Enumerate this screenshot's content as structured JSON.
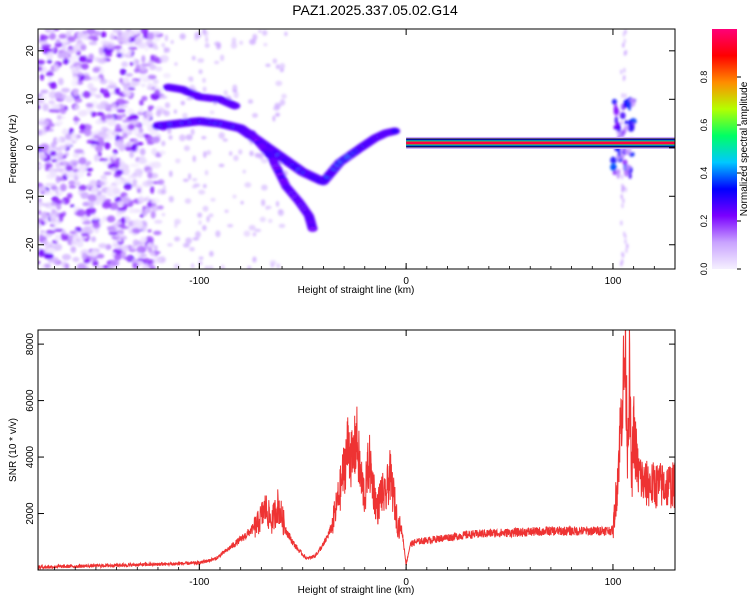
{
  "figure": {
    "title": "PAZ1.2025.337.05.02.G14"
  },
  "chart_data": [
    {
      "type": "heatmap",
      "title": "PAZ1.2025.337.05.02.G14",
      "xlabel": "Height of straight line (km)",
      "ylabel": "Frequency (Hz)",
      "xlim": [
        -178,
        130
      ],
      "ylim": [
        -25,
        24.5
      ],
      "xticks": [
        -100,
        0,
        100
      ],
      "yticks": [
        -20,
        -10,
        0,
        10,
        20
      ],
      "colorbar": {
        "label": "Normalized spectral amplitude",
        "range": [
          0,
          1
        ],
        "ticks": [
          0.0,
          0.2,
          0.4,
          0.6,
          0.8
        ],
        "colormap": [
          "#ffffff",
          "#c9a3ff",
          "#7a00ff",
          "#0000ff",
          "#00c8ff",
          "#00ff64",
          "#b4ff00",
          "#ff8c00",
          "#ff0000",
          "#ff0078"
        ]
      },
      "features": [
        {
          "name": "noise-cloud",
          "x_range": [
            -178,
            -115
          ],
          "y_range": [
            -25,
            24.5
          ]
        },
        {
          "name": "upper-branch",
          "points": [
            [
              -115,
              12.5
            ],
            [
              -108,
              12
            ],
            [
              -100,
              10.5
            ],
            [
              -90,
              10
            ],
            [
              -82,
              8.5
            ]
          ]
        },
        {
          "name": "mid-branch",
          "points": [
            [
              -120,
              4.5
            ],
            [
              -110,
              5
            ],
            [
              -100,
              5.5
            ],
            [
              -90,
              5
            ],
            [
              -80,
              4
            ],
            [
              -70,
              1
            ],
            [
              -60,
              -2
            ],
            [
              -50,
              -5
            ],
            [
              -40,
              -7
            ]
          ]
        },
        {
          "name": "lower-branch",
          "points": [
            [
              -75,
              3
            ],
            [
              -65,
              -2
            ],
            [
              -58,
              -8
            ],
            [
              -52,
              -11
            ],
            [
              -47,
              -14
            ],
            [
              -45,
              -17
            ]
          ]
        },
        {
          "name": "return-branch",
          "points": [
            [
              -40,
              -7
            ],
            [
              -32,
              -3
            ],
            [
              -22,
              0
            ],
            [
              -15,
              2
            ],
            [
              -10,
              3
            ],
            [
              -5,
              3.5
            ]
          ]
        },
        {
          "name": "carrier-line",
          "points": [
            [
              0,
              1
            ],
            [
              130,
              1
            ]
          ],
          "level": 0.95
        },
        {
          "name": "spike-region",
          "x_range": [
            100,
            110
          ],
          "y_range": [
            -6,
            10
          ]
        }
      ]
    },
    {
      "type": "line",
      "xlabel": "Height of straight line (km)",
      "ylabel": "SNR (10 * v/v)",
      "xlim": [
        -178,
        130
      ],
      "ylim": [
        0,
        8500
      ],
      "xticks": [
        -100,
        0,
        100
      ],
      "yticks": [
        2000,
        4000,
        6000,
        8000
      ],
      "series": [
        {
          "name": "SNR",
          "color": "#ee3333",
          "x": [
            -178,
            -150,
            -120,
            -100,
            -92,
            -85,
            -78,
            -72,
            -68,
            -65,
            -62,
            -58,
            -55,
            -52,
            -48,
            -44,
            -40,
            -36,
            -32,
            -30,
            -28,
            -26,
            -24,
            -22,
            -20,
            -18,
            -16,
            -14,
            -12,
            -10,
            -8,
            -6,
            -4,
            -2,
            0,
            2,
            5,
            10,
            20,
            30,
            40,
            50,
            60,
            70,
            80,
            90,
            95,
            100,
            102,
            104,
            106,
            107,
            108,
            109,
            110,
            112,
            115,
            120,
            125,
            130
          ],
          "y": [
            100,
            150,
            200,
            250,
            400,
            800,
            1200,
            1600,
            2200,
            1700,
            2300,
            1400,
            1000,
            700,
            400,
            500,
            900,
            1500,
            2800,
            3600,
            4500,
            3800,
            4700,
            3300,
            2600,
            3900,
            3000,
            2100,
            2800,
            2500,
            3400,
            2600,
            1600,
            1400,
            200,
            900,
            1000,
            1050,
            1150,
            1250,
            1300,
            1320,
            1350,
            1380,
            1380,
            1380,
            1400,
            1400,
            3000,
            5500,
            7800,
            4500,
            7000,
            3000,
            5000,
            3500,
            3050,
            3000,
            3000,
            3000
          ]
        }
      ]
    }
  ]
}
